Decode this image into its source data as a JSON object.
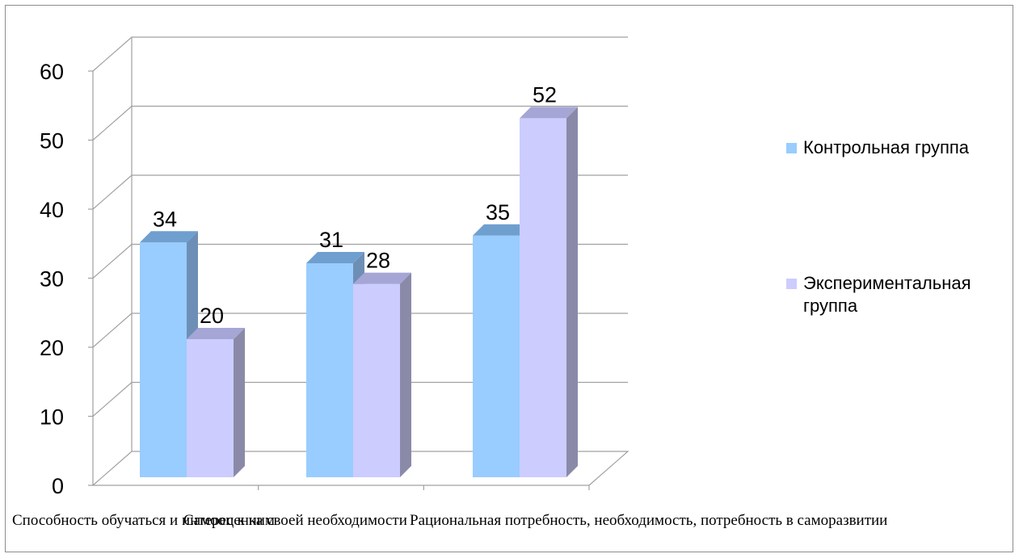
{
  "chart_data": {
    "type": "bar",
    "categories": [
      "Способность обучаться и интерес к ним",
      "Самооценка своей необходимости",
      "Рациональная потребность, необходимость, потребность в саморазвитии"
    ],
    "series": [
      {
        "name": "Контрольная группа",
        "values": [
          34,
          31,
          35
        ],
        "color": "#99ccff"
      },
      {
        "name": "Экспериментальная группа",
        "values": [
          20,
          28,
          52
        ],
        "color": "#ccccff"
      }
    ],
    "ylim": [
      0,
      60
    ],
    "yticks": [
      0,
      10,
      20,
      30,
      40,
      50,
      60
    ],
    "grid": true,
    "legend_position": "right",
    "xlabel_visible": "обучаться и интерес к ним … Самооценка своей необходимости … необходимость, потребность в саморазвитии"
  },
  "legend": [
    {
      "label": "Контрольная группа"
    },
    {
      "label": "Экспериментальная группа"
    }
  ]
}
